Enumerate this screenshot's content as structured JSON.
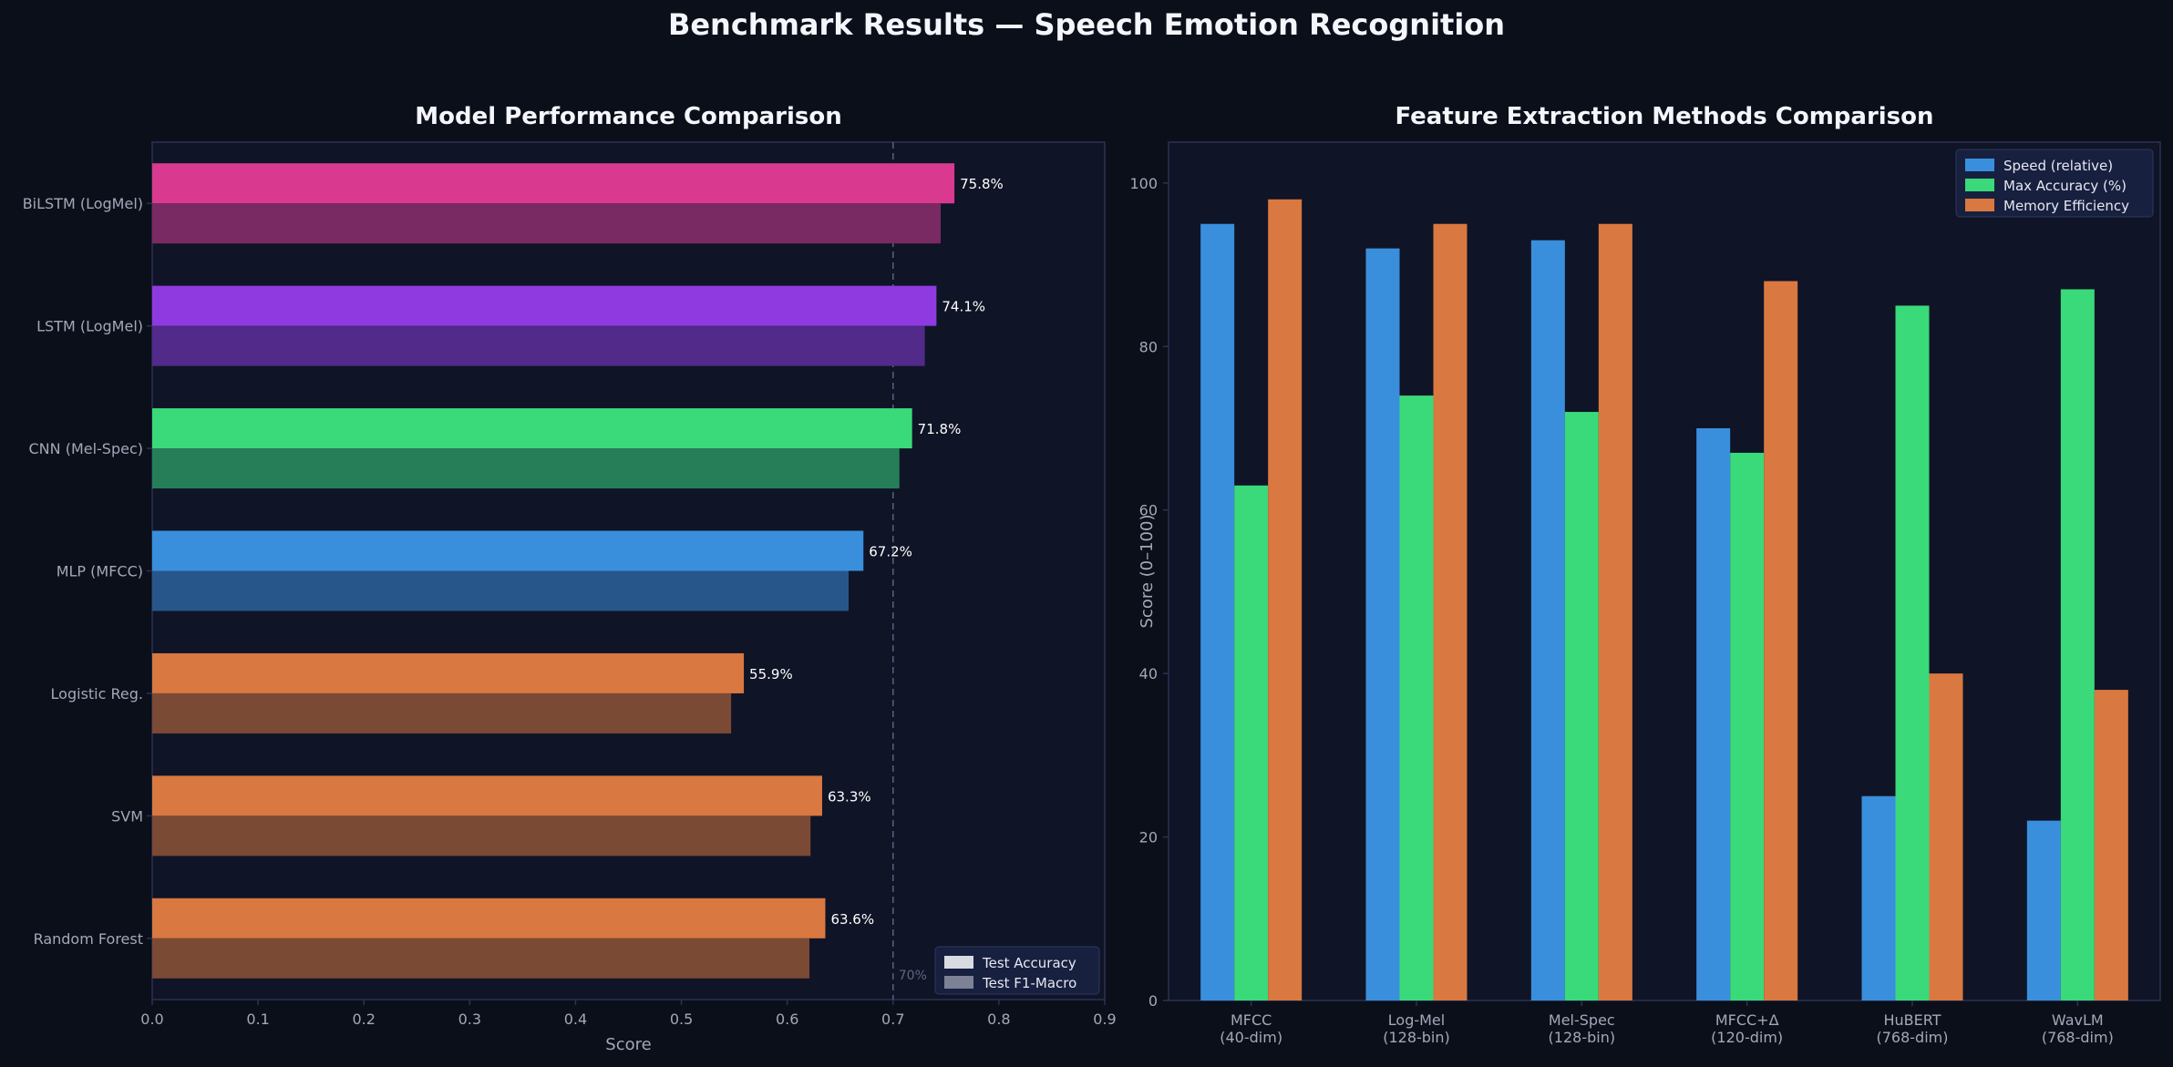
{
  "suptitle": "Benchmark Results — Speech Emotion Recognition",
  "colors": {
    "figure_bg": "#0b0f1a",
    "axes_bg": "#0f1426",
    "spine": "#2b3253",
    "tick_text": "#a3a8b8",
    "title_text": "#f4f6fb",
    "pink": "#d93a90",
    "pink_dark": "#7a2a62",
    "purple": "#8f3ae0",
    "purple_dark": "#522a8a",
    "green": "#3ad97a",
    "green_dark": "#267e58",
    "blue": "#3a8fdd",
    "blue_dark": "#27578a",
    "orange": "#d97840",
    "orange_dark": "#7a4a35"
  },
  "chart_data": [
    {
      "type": "bar",
      "orientation": "horizontal",
      "title": "Model Performance Comparison",
      "xlabel": "Score",
      "ylabel": "",
      "xlim": [
        0,
        0.9
      ],
      "xticks": [
        0.0,
        0.1,
        0.2,
        0.3,
        0.4,
        0.5,
        0.6,
        0.7,
        0.8,
        0.9
      ],
      "xtick_labels": [
        "0.0",
        "0.1",
        "0.2",
        "0.3",
        "0.4",
        "0.5",
        "0.6",
        "0.7",
        "0.8",
        "0.9"
      ],
      "categories": [
        "BiLSTM (LogMel)",
        "LSTM (LogMel)",
        "CNN (Mel-Spec)",
        "MLP (MFCC)",
        "Logistic Reg.",
        "SVM",
        "Random Forest"
      ],
      "series": [
        {
          "name": "Test Accuracy",
          "values": [
            0.758,
            0.741,
            0.718,
            0.672,
            0.559,
            0.633,
            0.636
          ],
          "colors": [
            "#d93a90",
            "#8f3ae0",
            "#3ad97a",
            "#3a8fdd",
            "#d97840",
            "#d97840",
            "#d97840"
          ],
          "legend_swatch": "#d9dbe3"
        },
        {
          "name": "Test F1-Macro",
          "values": [
            0.745,
            0.73,
            0.706,
            0.658,
            0.547,
            0.622,
            0.621
          ],
          "colors": [
            "#7a2a62",
            "#522a8a",
            "#267e58",
            "#27578a",
            "#7a4a35",
            "#7a4a35",
            "#7a4a35"
          ],
          "legend_swatch": "#7d8196"
        }
      ],
      "data_labels": [
        "75.8%",
        "74.1%",
        "71.8%",
        "67.2%",
        "55.9%",
        "63.3%",
        "63.6%"
      ],
      "reference_line": {
        "x": 0.7,
        "label": "70%"
      },
      "legend_position": "lower-right",
      "grid": false
    },
    {
      "type": "bar",
      "orientation": "vertical",
      "title": "Feature Extraction Methods Comparison",
      "xlabel": "",
      "ylabel": "Score (0–100)",
      "ylim": [
        0,
        105
      ],
      "yticks": [
        0,
        20,
        40,
        60,
        80,
        100
      ],
      "ytick_labels": [
        "0",
        "20",
        "40",
        "60",
        "80",
        "100"
      ],
      "categories": [
        [
          "MFCC",
          "(40-dim)"
        ],
        [
          "Log-Mel",
          "(128-bin)"
        ],
        [
          "Mel-Spec",
          "(128-bin)"
        ],
        [
          "MFCC+Δ",
          "(120-dim)"
        ],
        [
          "HuBERT",
          "(768-dim)"
        ],
        [
          "WavLM",
          "(768-dim)"
        ]
      ],
      "series": [
        {
          "name": "Speed (relative)",
          "color": "#3a8fdd",
          "values": [
            95,
            92,
            93,
            70,
            25,
            22
          ]
        },
        {
          "name": "Max Accuracy (%)",
          "color": "#3ad97a",
          "values": [
            63,
            74,
            72,
            67,
            85,
            87
          ]
        },
        {
          "name": "Memory Efficiency",
          "color": "#d97840",
          "values": [
            98,
            95,
            95,
            88,
            40,
            38
          ]
        }
      ],
      "legend_position": "upper-right",
      "grid": false
    }
  ]
}
